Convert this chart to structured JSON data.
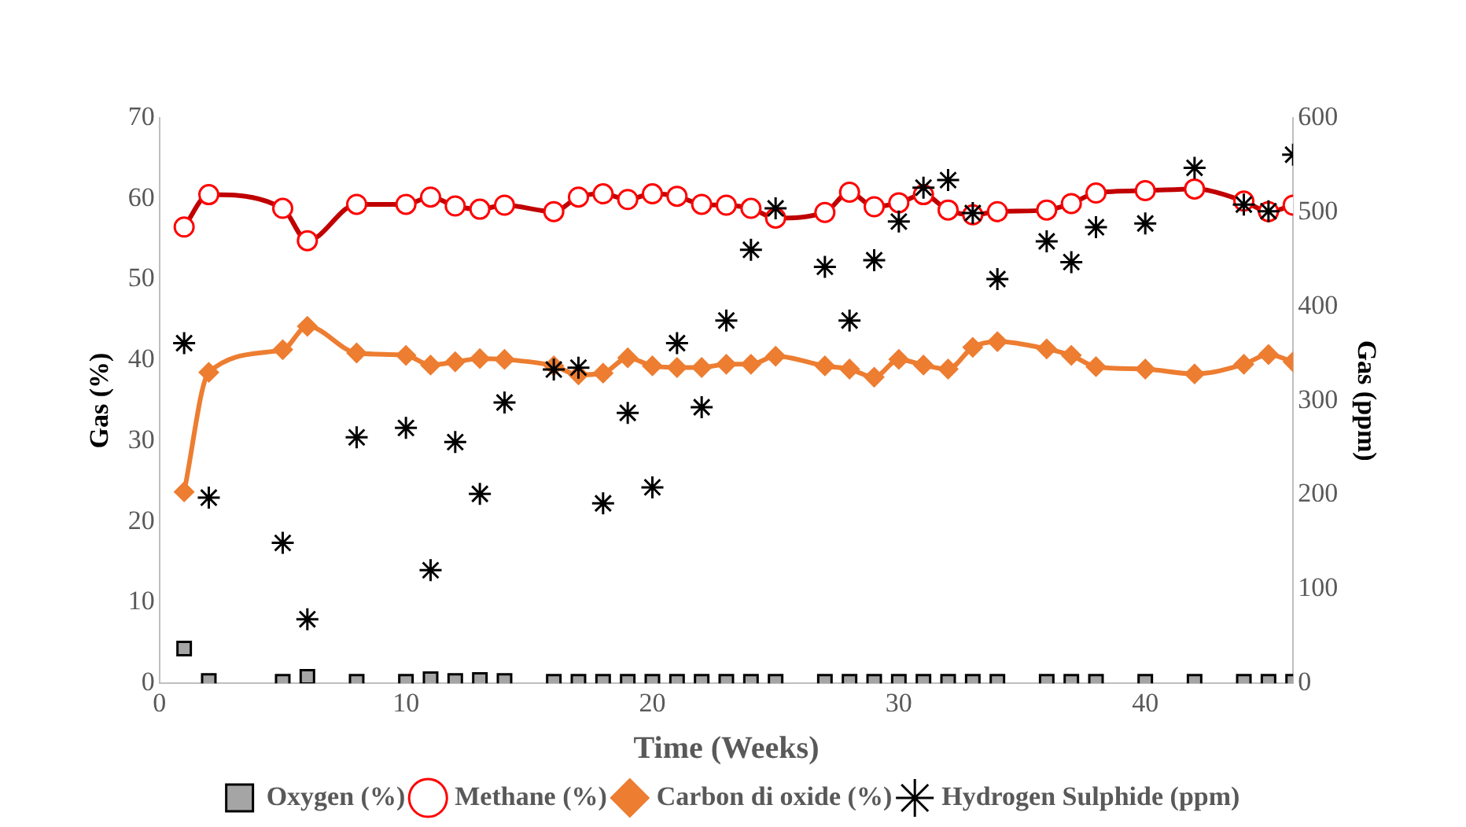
{
  "chart_data": {
    "type": "line",
    "xlabel": "Time (Weeks)",
    "ylabel": "Gas (%)",
    "y2label": "Gas (ppm)",
    "x": [
      1,
      2,
      5,
      6,
      8,
      10,
      11,
      12,
      13,
      14,
      16,
      17,
      18,
      19,
      20,
      21,
      22,
      23,
      24,
      25,
      27,
      28,
      29,
      30,
      31,
      32,
      33,
      34,
      36,
      37,
      38,
      40,
      42,
      44,
      45,
      46
    ],
    "xlim": [
      0,
      46
    ],
    "xticks": [
      0,
      10,
      20,
      30,
      40
    ],
    "ylim": [
      0,
      70
    ],
    "yticks": [
      0,
      10,
      20,
      30,
      40,
      50,
      60,
      70
    ],
    "y2lim": [
      0,
      600
    ],
    "y2ticks": [
      0,
      100,
      200,
      300,
      400,
      500,
      600
    ],
    "grid": false,
    "legend": "bottom",
    "series": [
      {
        "name": "Oxygen (%)",
        "type": "scatter",
        "marker": "square",
        "color": "#a5a5a5",
        "values": [
          4.3,
          0.3,
          0.2,
          0.8,
          0.2,
          0.2,
          0.5,
          0.3,
          0.4,
          0.3,
          0.2,
          0.2,
          0.2,
          0.2,
          0.2,
          0.2,
          0.2,
          0.2,
          0.2,
          0.2,
          0.2,
          0.2,
          0.2,
          0.2,
          0.2,
          0.2,
          0.2,
          0.2,
          0.2,
          0.2,
          0.2,
          0.2,
          0.2,
          0.2,
          0.2,
          0.2
        ]
      },
      {
        "name": "Methane (%)",
        "type": "line",
        "marker": "circle",
        "color": "#c00000",
        "values": [
          56.5,
          60.5,
          58.8,
          54.8,
          59.3,
          59.3,
          60.2,
          59.1,
          58.7,
          59.2,
          58.4,
          60.2,
          60.6,
          59.9,
          60.6,
          60.3,
          59.3,
          59.2,
          58.8,
          57.6,
          58.3,
          60.8,
          59.0,
          59.5,
          60.5,
          58.6,
          58.0,
          58.4,
          58.6,
          59.4,
          60.7,
          61.0,
          61.2,
          59.7,
          58.4,
          59.2
        ]
      },
      {
        "name": "Carbon di oxide (%)",
        "type": "line",
        "marker": "diamond",
        "color": "#ed7d31",
        "values": [
          23.7,
          38.5,
          41.3,
          44.2,
          40.9,
          40.6,
          39.4,
          39.8,
          40.2,
          40.1,
          39.3,
          38.2,
          38.4,
          40.3,
          39.3,
          39.1,
          39.1,
          39.5,
          39.5,
          40.5,
          39.3,
          38.9,
          37.9,
          40.1,
          39.4,
          38.9,
          41.6,
          42.3,
          41.4,
          40.6,
          39.2,
          38.9,
          38.3,
          39.5,
          40.7,
          39.8
        ]
      },
      {
        "name": "Hydrogen Sulphide (ppm)",
        "type": "scatter",
        "axis": "y2",
        "marker": "cross",
        "color": "#000000",
        "values": [
          361,
          197,
          149,
          68,
          261,
          271,
          120,
          256,
          201,
          298,
          333,
          335,
          191,
          287,
          208,
          361,
          293,
          385,
          460,
          504,
          442,
          385,
          449,
          490,
          526,
          534,
          499,
          429,
          469,
          447,
          484,
          488,
          547,
          508,
          501,
          561
        ]
      }
    ]
  }
}
